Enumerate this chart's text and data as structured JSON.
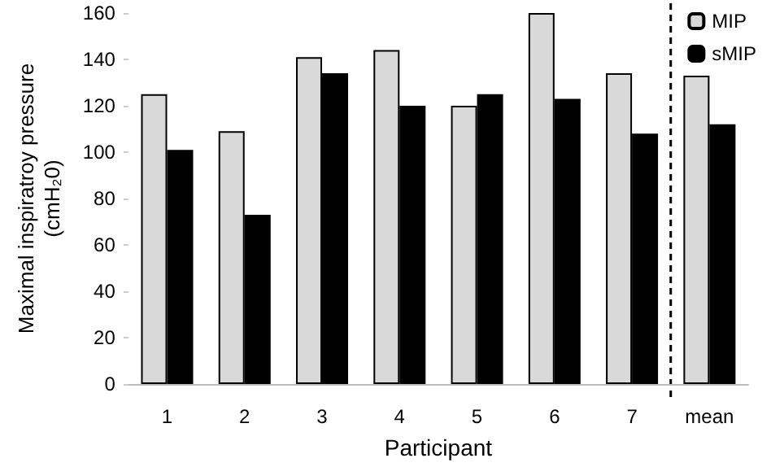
{
  "chart_data": {
    "type": "bar",
    "xlabel": "Participant",
    "ylabel": "Maximal inspiratroy pressure\n(cmH₂0)",
    "categories": [
      "1",
      "2",
      "3",
      "4",
      "5",
      "6",
      "7",
      "mean"
    ],
    "series": [
      {
        "name": "MIP",
        "color": "#d9d9d9",
        "values": [
          125,
          109,
          141,
          144,
          120,
          160,
          134,
          133
        ]
      },
      {
        "name": "sMIP",
        "color": "#000000",
        "values": [
          101,
          73,
          134,
          120,
          125,
          123,
          108,
          112
        ]
      }
    ],
    "ylim": [
      0,
      160
    ],
    "yticks": [
      0,
      20,
      40,
      60,
      80,
      100,
      120,
      140,
      160
    ],
    "grid": false,
    "legend": "top right"
  }
}
